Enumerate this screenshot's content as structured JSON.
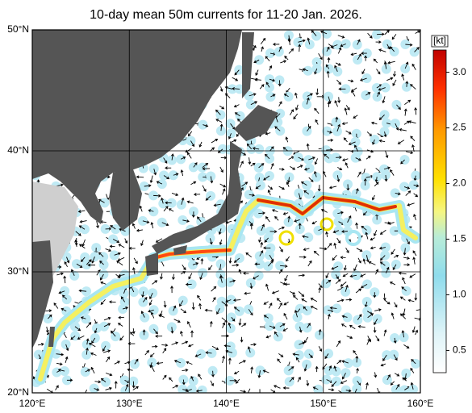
{
  "map": {
    "title": "10-day mean 50m currents for 11-20 Jan. 2026.",
    "lon_lim": [
      120,
      160
    ],
    "lat_lim": [
      20,
      50
    ],
    "lon_ticks": [
      {
        "value": 120,
        "label": "120°E"
      },
      {
        "value": 130,
        "label": "130°E"
      },
      {
        "value": 140,
        "label": "140°E"
      },
      {
        "value": 150,
        "label": "150°E"
      },
      {
        "value": 160,
        "label": "160°E"
      }
    ],
    "lat_ticks": [
      {
        "value": 20,
        "label": "20°N"
      },
      {
        "value": 30,
        "label": "30°N"
      },
      {
        "value": 40,
        "label": "40°N"
      },
      {
        "value": 50,
        "label": "50°N"
      }
    ],
    "colorbar": {
      "label": "[kt]",
      "lim": [
        0.3,
        3.2
      ],
      "ticks": [
        0.5,
        {
          "value": 1,
          "label": "1.0"
        },
        1.5,
        {
          "value": 2,
          "label": "2.0"
        },
        2.5,
        {
          "value": 3,
          "label": "3.0"
        }
      ]
    }
  }
}
